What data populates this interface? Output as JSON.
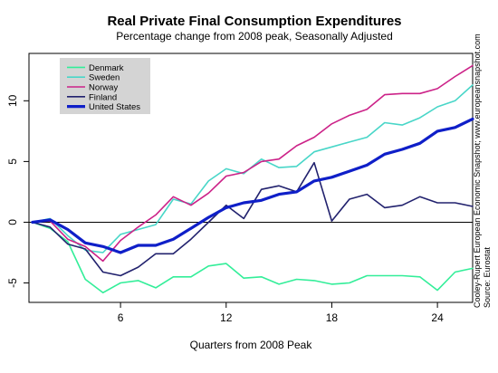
{
  "chart_data": {
    "type": "line",
    "title": "Real Private Final Consumption Expenditures",
    "subtitle": "Percentage change from 2008 peak, Seasonally Adjusted",
    "xlabel": "Quarters from 2008 Peak",
    "ylabel": "",
    "xlim": [
      0.8,
      26
    ],
    "ylim": [
      -6.6,
      13.9
    ],
    "x_ticks": [
      6,
      12,
      18,
      24
    ],
    "x_tick_labels": [
      "6",
      "12",
      "18",
      "24"
    ],
    "y_ticks": [
      -5,
      0,
      5,
      10
    ],
    "y_tick_labels": [
      "-5",
      "0",
      "5",
      "10"
    ],
    "zero_line": true,
    "grid": false,
    "legend_position": "top-left",
    "x": [
      1,
      2,
      3,
      4,
      5,
      6,
      7,
      8,
      9,
      10,
      11,
      12,
      13,
      14,
      15,
      16,
      17,
      18,
      19,
      20,
      21,
      22,
      23,
      24,
      25,
      26
    ],
    "series": [
      {
        "name": "Denmark",
        "color": "#33ee99",
        "width": 1.6,
        "values": [
          0.0,
          -0.5,
          -1.6,
          -4.7,
          -5.8,
          -5.0,
          -4.8,
          -5.4,
          -4.5,
          -4.5,
          -3.6,
          -3.4,
          -4.6,
          -4.5,
          -5.1,
          -4.7,
          -4.8,
          -5.1,
          -5.0,
          -4.4,
          -4.4,
          -4.4,
          -4.5,
          -5.6,
          -4.1,
          -3.8
        ]
      },
      {
        "name": "Sweden",
        "color": "#48d6c8",
        "width": 1.6,
        "values": [
          0.0,
          0.3,
          -1.1,
          -2.3,
          -2.5,
          -1.0,
          -0.6,
          -0.2,
          1.9,
          1.5,
          3.4,
          4.4,
          4.0,
          5.2,
          4.5,
          4.6,
          5.8,
          6.2,
          6.6,
          7.0,
          8.2,
          8.0,
          8.6,
          9.5,
          10.0,
          11.3
        ]
      },
      {
        "name": "Norway",
        "color": "#cc2288",
        "width": 1.6,
        "values": [
          0.0,
          0.1,
          -1.4,
          -2.0,
          -3.2,
          -1.5,
          -0.4,
          0.6,
          2.1,
          1.4,
          2.4,
          3.8,
          4.1,
          5.0,
          5.2,
          6.3,
          7.0,
          8.1,
          8.8,
          9.3,
          10.5,
          10.6,
          10.6,
          11.0,
          12.0,
          12.9
        ]
      },
      {
        "name": "Finland",
        "color": "#22226e",
        "width": 1.6,
        "values": [
          0.0,
          -0.4,
          -1.8,
          -2.2,
          -4.1,
          -4.4,
          -3.7,
          -2.6,
          -2.6,
          -1.4,
          0.0,
          1.4,
          0.3,
          2.7,
          3.0,
          2.5,
          4.9,
          0.1,
          1.9,
          2.3,
          1.2,
          1.4,
          2.1,
          1.6,
          1.6,
          1.3
        ]
      },
      {
        "name": "United States",
        "color": "#0f1fc8",
        "width": 3.2,
        "values": [
          0.0,
          0.2,
          -0.6,
          -1.7,
          -2.0,
          -2.5,
          -1.9,
          -1.9,
          -1.4,
          -0.5,
          0.4,
          1.2,
          1.6,
          1.8,
          2.3,
          2.5,
          3.4,
          3.7,
          4.2,
          4.7,
          5.6,
          6.0,
          6.5,
          7.5,
          7.8,
          8.5
        ]
      }
    ],
    "source_lines": [
      "Cooley-Rupert European Economic Snapshot; www.europeansnapshot.com",
      "Source: Eurostat"
    ]
  }
}
